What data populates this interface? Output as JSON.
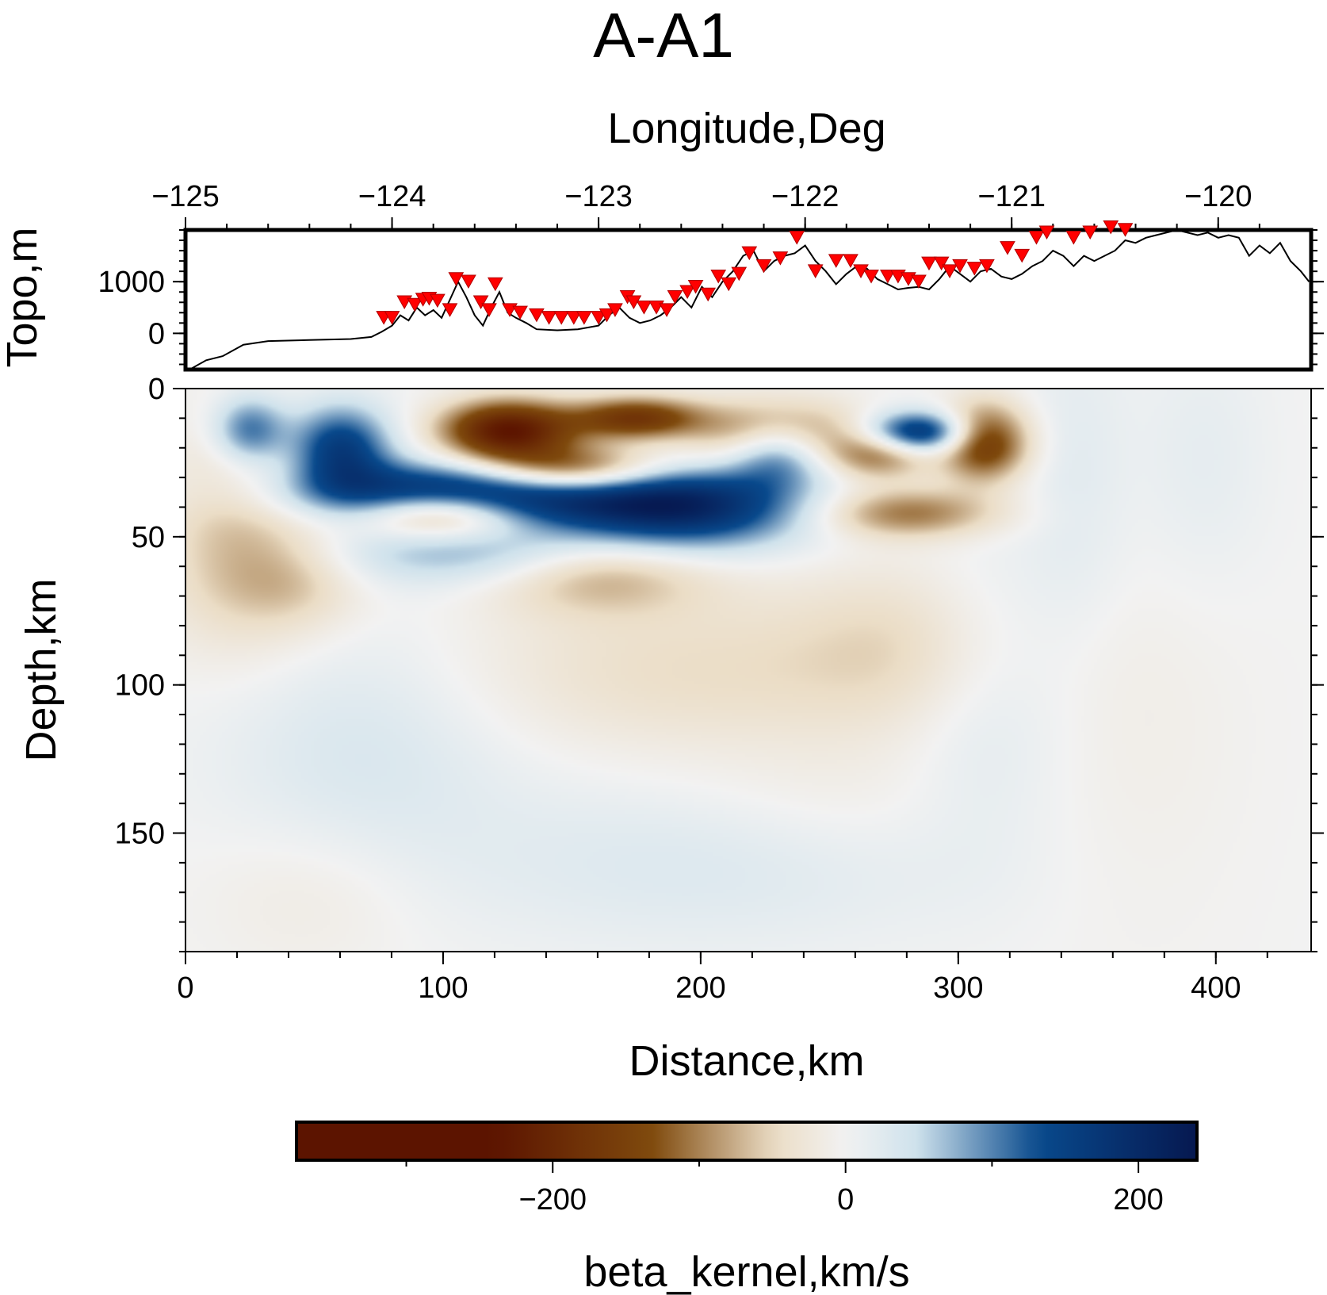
{
  "chart_data": [
    {
      "type": "line",
      "panel": "topography",
      "title": "A-A1",
      "xlabel": "Longitude,Deg",
      "ylabel": "Topo,m",
      "xlim": [
        -125,
        -119.55
      ],
      "ylim": [
        -700,
        2000
      ],
      "x_ticks": [
        -125,
        -124,
        -123,
        -122,
        -121,
        -120
      ],
      "x_tick_labels": [
        "−125",
        "−124",
        "−123",
        "−122",
        "−121",
        "−120"
      ],
      "y_ticks": [
        0,
        1000
      ],
      "y_tick_labels": [
        "0",
        "1000"
      ],
      "topo_lon": [
        -124.98,
        -124.9,
        -124.82,
        -124.72,
        -124.6,
        -124.4,
        -124.2,
        -124.1,
        -124.05,
        -124.0,
        -123.96,
        -123.92,
        -123.88,
        -123.84,
        -123.8,
        -123.76,
        -123.72,
        -123.68,
        -123.64,
        -123.6,
        -123.56,
        -123.52,
        -123.48,
        -123.44,
        -123.4,
        -123.35,
        -123.3,
        -123.2,
        -123.1,
        -123.0,
        -122.95,
        -122.9,
        -122.85,
        -122.8,
        -122.75,
        -122.7,
        -122.65,
        -122.6,
        -122.55,
        -122.5,
        -122.45,
        -122.4,
        -122.35,
        -122.3,
        -122.25,
        -122.2,
        -122.15,
        -122.1,
        -122.05,
        -122.0,
        -121.95,
        -121.9,
        -121.85,
        -121.8,
        -121.75,
        -121.7,
        -121.65,
        -121.6,
        -121.55,
        -121.5,
        -121.45,
        -121.4,
        -121.35,
        -121.3,
        -121.25,
        -121.2,
        -121.15,
        -121.1,
        -121.05,
        -121.0,
        -120.95,
        -120.9,
        -120.85,
        -120.8,
        -120.75,
        -120.7,
        -120.65,
        -120.6,
        -120.55,
        -120.5,
        -120.45,
        -120.4,
        -120.35,
        -120.3,
        -120.25,
        -120.2,
        -120.15,
        -120.1,
        -120.05,
        -120.0,
        -119.95,
        -119.9,
        -119.85,
        -119.8,
        -119.75,
        -119.7,
        -119.65,
        -119.6,
        -119.56
      ],
      "topo_elev": [
        -700,
        -520,
        -440,
        -220,
        -150,
        -130,
        -110,
        -70,
        30,
        150,
        350,
        250,
        500,
        350,
        450,
        300,
        650,
        1000,
        700,
        350,
        150,
        500,
        800,
        400,
        300,
        200,
        80,
        60,
        80,
        150,
        350,
        500,
        300,
        200,
        250,
        350,
        500,
        700,
        500,
        900,
        700,
        1000,
        1200,
        1500,
        1600,
        1200,
        1400,
        1500,
        1550,
        1700,
        1400,
        1200,
        950,
        1150,
        1300,
        1250,
        1050,
        950,
        850,
        880,
        900,
        850,
        1050,
        1300,
        1150,
        1000,
        1200,
        1250,
        1100,
        1050,
        1150,
        1300,
        1400,
        1600,
        1500,
        1300,
        1500,
        1400,
        1500,
        1600,
        1800,
        1750,
        1850,
        1900,
        1950,
        2000,
        1950,
        1900,
        1950,
        1850,
        1900,
        1850,
        1500,
        1700,
        1550,
        1750,
        1400,
        1200,
        1000
      ],
      "station_lon": [
        -124.04,
        -124.0,
        -123.94,
        -123.89,
        -123.85,
        -123.82,
        -123.78,
        -123.72,
        -123.69,
        -123.63,
        -123.57,
        -123.53,
        -123.5,
        -123.43,
        -123.38,
        -123.3,
        -123.24,
        -123.18,
        -123.12,
        -123.07,
        -123.0,
        -122.96,
        -122.92,
        -122.86,
        -122.83,
        -122.78,
        -122.72,
        -122.67,
        -122.63,
        -122.57,
        -122.53,
        -122.47,
        -122.42,
        -122.37,
        -122.32,
        -122.27,
        -122.2,
        -122.12,
        -122.04,
        -121.95,
        -121.85,
        -121.78,
        -121.73,
        -121.68,
        -121.6,
        -121.55,
        -121.5,
        -121.45,
        -121.4,
        -121.34,
        -121.3,
        -121.25,
        -121.18,
        -121.12,
        -121.02,
        -120.95,
        -120.88,
        -120.83,
        -120.7,
        -120.62,
        -120.52,
        -120.45
      ],
      "station_elev": [
        150,
        150,
        450,
        400,
        500,
        520,
        480,
        300,
        900,
        850,
        450,
        300,
        800,
        300,
        250,
        200,
        150,
        150,
        150,
        150,
        150,
        200,
        300,
        550,
        450,
        350,
        350,
        300,
        550,
        650,
        750,
        600,
        950,
        800,
        1000,
        1400,
        1150,
        1300,
        1700,
        1050,
        1250,
        1250,
        1050,
        950,
        950,
        950,
        900,
        850,
        1200,
        1200,
        1050,
        1150,
        1100,
        1150,
        1500,
        1350,
        1700,
        1800,
        1700,
        1800,
        1900,
        1850
      ]
    },
    {
      "type": "heatmap",
      "panel": "cross-section",
      "xlabel": "Distance,km",
      "ylabel": "Depth,km",
      "xlim": [
        0,
        437
      ],
      "ylim": [
        190,
        0
      ],
      "x_ticks": [
        0,
        100,
        200,
        300,
        400
      ],
      "x_tick_labels": [
        "0",
        "100",
        "200",
        "300",
        "400"
      ],
      "y_ticks": [
        0,
        50,
        100,
        150
      ],
      "y_tick_labels": [
        "0",
        "50",
        "100",
        "150"
      ],
      "anomalies": [
        {
          "x": 60,
          "y": 20,
          "sx": 14,
          "sy": 10,
          "v": 160
        },
        {
          "x": 25,
          "y": 14,
          "sx": 10,
          "sy": 8,
          "v": 120
        },
        {
          "x": 125,
          "y": 14,
          "sx": 18,
          "sy": 7,
          "v": -230
        },
        {
          "x": 150,
          "y": 28,
          "sx": 26,
          "sy": 6,
          "v": -200
        },
        {
          "x": 230,
          "y": 16,
          "sx": 20,
          "sy": 8,
          "v": -190
        },
        {
          "x": 175,
          "y": 10,
          "sx": 18,
          "sy": 5,
          "v": -170
        },
        {
          "x": 110,
          "y": 35,
          "sx": 45,
          "sy": 7,
          "v": 230
        },
        {
          "x": 190,
          "y": 40,
          "sx": 35,
          "sy": 10,
          "v": 210
        },
        {
          "x": 230,
          "y": 20,
          "sx": 14,
          "sy": 8,
          "v": 190
        },
        {
          "x": 285,
          "y": 15,
          "sx": 15,
          "sy": 5,
          "v": 200
        },
        {
          "x": 310,
          "y": 18,
          "sx": 12,
          "sy": 9,
          "v": -180
        },
        {
          "x": 270,
          "y": 22,
          "sx": 14,
          "sy": 6,
          "v": -110
        },
        {
          "x": 100,
          "y": 42,
          "sx": 22,
          "sy": 6,
          "v": -160
        },
        {
          "x": 120,
          "y": 55,
          "sx": 45,
          "sy": 8,
          "v": 90
        },
        {
          "x": 160,
          "y": 60,
          "sx": 30,
          "sy": 10,
          "v": -100
        },
        {
          "x": 280,
          "y": 42,
          "sx": 25,
          "sy": 6,
          "v": -110
        },
        {
          "x": 20,
          "y": 52,
          "sx": 22,
          "sy": 25,
          "v": -70
        },
        {
          "x": 45,
          "y": 65,
          "sx": 18,
          "sy": 12,
          "v": -45
        },
        {
          "x": 200,
          "y": 95,
          "sx": 70,
          "sy": 20,
          "v": -45
        },
        {
          "x": 280,
          "y": 85,
          "sx": 30,
          "sy": 20,
          "v": -35
        },
        {
          "x": 70,
          "y": 120,
          "sx": 40,
          "sy": 30,
          "v": 35
        },
        {
          "x": 310,
          "y": 100,
          "sx": 22,
          "sy": 35,
          "v": 30
        },
        {
          "x": 200,
          "y": 160,
          "sx": 70,
          "sy": 20,
          "v": 30
        },
        {
          "x": 50,
          "y": 170,
          "sx": 30,
          "sy": 18,
          "v": -20
        },
        {
          "x": 250,
          "y": 140,
          "sx": 40,
          "sy": 15,
          "v": -15
        },
        {
          "x": 345,
          "y": 30,
          "sx": 15,
          "sy": 40,
          "v": 22
        },
        {
          "x": 395,
          "y": 25,
          "sx": 18,
          "sy": 30,
          "v": 18
        },
        {
          "x": 370,
          "y": 120,
          "sx": 30,
          "sy": 50,
          "v": -10
        }
      ]
    },
    {
      "type": "colorbar",
      "xlabel": "beta_kernel,km/s",
      "range": [
        -375,
        240
      ],
      "ticks": [
        -200,
        0,
        200
      ],
      "tick_labels": [
        "−200",
        "0",
        "200"
      ],
      "minor_ticks": [
        -300,
        -100,
        100
      ],
      "colors": {
        "neg_dark": "#5c1400",
        "neg_mid": "#7f4a0d",
        "neg_light": "#ebddc6",
        "zero": "#f2f2f2",
        "pos_light": "#cfe2ec",
        "pos_mid": "#08498c",
        "pos_dark": "#061850"
      }
    }
  ]
}
